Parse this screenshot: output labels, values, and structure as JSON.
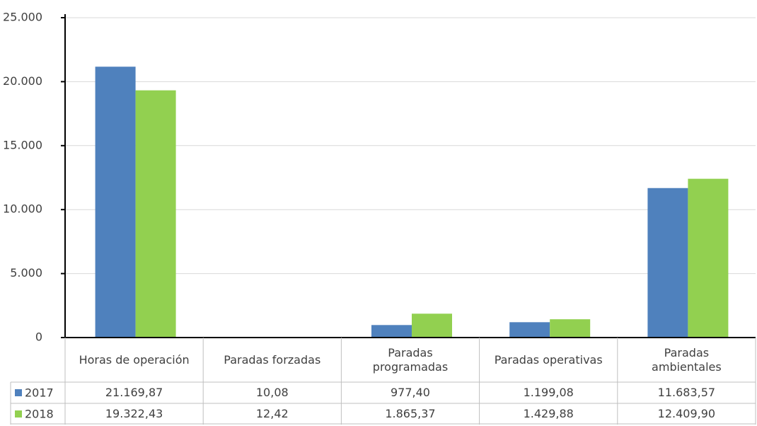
{
  "chart_data": {
    "type": "bar",
    "categories": [
      "Horas de operación",
      "Paradas forzadas",
      "Paradas programadas",
      "Paradas operativas",
      "Paradas ambientales"
    ],
    "series": [
      {
        "name": "2017",
        "color": "#4f81bd",
        "values": [
          21169.87,
          10.08,
          977.4,
          1199.08,
          11683.57
        ],
        "value_labels": [
          "21.169,87",
          "10,08",
          "977,40",
          "1.199,08",
          "11.683,57"
        ]
      },
      {
        "name": "2018",
        "color": "#92d050",
        "values": [
          19322.43,
          12.42,
          1865.37,
          1429.88,
          12409.9
        ],
        "value_labels": [
          "19.322,43",
          "12,42",
          "1.865,37",
          "1.429,88",
          "12.409,90"
        ]
      }
    ],
    "ylim": [
      0,
      25000
    ],
    "yticks": [
      0,
      {
        "value": 5000,
        "label": "5.000"
      },
      {
        "value": 10000,
        "label": "10.000"
      },
      {
        "value": 15000,
        "label": "15.000"
      },
      {
        "value": 20000,
        "label": "20.000"
      },
      {
        "value": 25000,
        "label": "25.000"
      }
    ],
    "grid": true,
    "data_table": true
  }
}
